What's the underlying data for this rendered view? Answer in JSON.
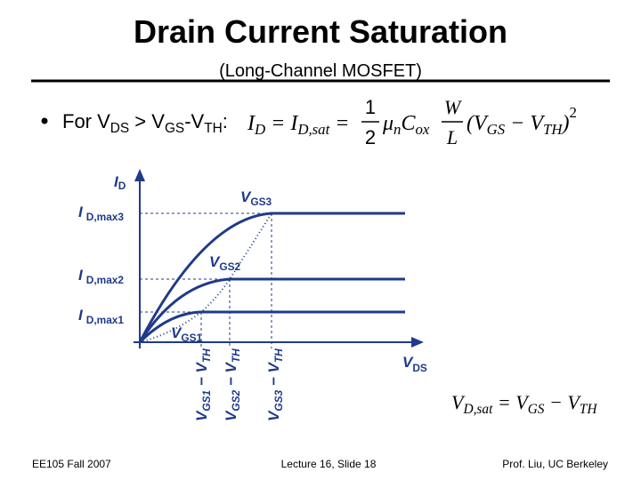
{
  "header": {
    "title": "Drain Current Saturation",
    "subtitle": "(Long-Channel MOSFET)"
  },
  "bullet": {
    "parts": [
      "For V",
      "DS",
      " > V",
      "GS",
      "-V",
      "TH",
      ":"
    ]
  },
  "equation": {
    "lhs": [
      "I",
      "D",
      " = ",
      "I",
      "D,sat",
      " = "
    ],
    "fraction": [
      "1",
      "2"
    ],
    "mobility": [
      "μ",
      "n",
      "C",
      "ox"
    ],
    "ratio": [
      "W",
      "L"
    ],
    "term": [
      "(V",
      "GS",
      " − V",
      "TH",
      ")"
    ],
    "power": "2"
  },
  "diagram": {
    "y_axis": [
      "I",
      "D"
    ],
    "x_axis": [
      "V",
      "DS"
    ],
    "curves": [
      {
        "label": [
          "V",
          "GS1"
        ]
      },
      {
        "label": [
          "V",
          "GS2"
        ]
      },
      {
        "label": [
          "V",
          "GS3"
        ]
      }
    ],
    "levels": [
      [
        "I",
        "D,max1"
      ],
      [
        "I",
        "D,max2"
      ],
      [
        "I",
        "D,max3"
      ]
    ],
    "overdrives": [
      [
        "V",
        "GS1",
        " − V",
        "TH"
      ],
      [
        "V",
        "GS2",
        " − V",
        "TH"
      ],
      [
        "V",
        "GS3",
        " − V",
        "TH"
      ]
    ]
  },
  "saturation_equation": [
    "V",
    "D,sat",
    " = V",
    "GS",
    " − V",
    "TH"
  ],
  "footer": {
    "left": "EE105 Fall 2007",
    "center": "Lecture 16, Slide 18",
    "right": "Prof. Liu, UC Berkeley"
  }
}
